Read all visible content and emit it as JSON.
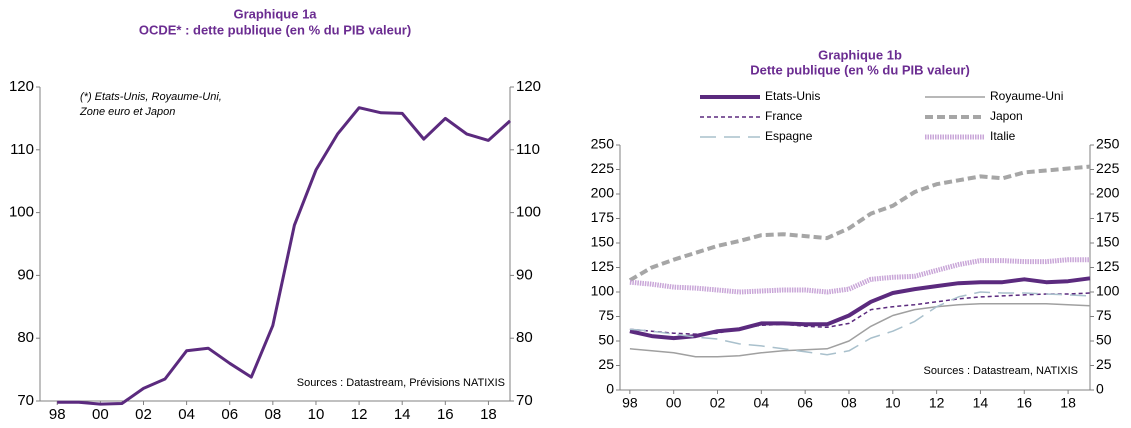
{
  "chart_data": [
    {
      "type": "line",
      "title": "Graphique 1a",
      "subtitle": "OCDE*  : dette publique (en % du PIB valeur)",
      "annotations": [
        "(*) Etats-Unis, Royaume-Uni,",
        "Zone euro  et Japon",
        "Sources  : Datastream,  Prévisions NATIXIS"
      ],
      "x": [
        1998,
        1999,
        2000,
        2001,
        2002,
        2003,
        2004,
        2005,
        2006,
        2007,
        2008,
        2009,
        2010,
        2011,
        2012,
        2013,
        2014,
        2015,
        2016,
        2017,
        2018,
        2019
      ],
      "values": [
        69.8,
        69.8,
        69.5,
        69.6,
        72,
        73.5,
        78,
        78.4,
        76,
        73.8,
        82,
        98,
        106.8,
        112.5,
        116.7,
        115.9,
        115.8,
        111.7,
        115,
        112.5,
        111.5,
        114.6
      ],
      "color": "#5b2a7e",
      "xlim": [
        1997.2,
        2019
      ],
      "xticks": [
        {
          "value": 1998,
          "label": "98"
        },
        {
          "value": 2000,
          "label": "00"
        },
        {
          "value": 2002,
          "label": "02"
        },
        {
          "value": 2004,
          "label": "04"
        },
        {
          "value": 2006,
          "label": "06"
        },
        {
          "value": 2008,
          "label": "08"
        },
        {
          "value": 2010,
          "label": "10"
        },
        {
          "value": 2012,
          "label": "12"
        },
        {
          "value": 2014,
          "label": "14"
        },
        {
          "value": 2016,
          "label": "16"
        },
        {
          "value": 2018,
          "label": "18"
        }
      ],
      "ylim": [
        70,
        120
      ],
      "yticks": [
        70,
        80,
        90,
        100,
        110,
        120
      ],
      "y2lim": [
        70,
        120
      ],
      "y2ticks": [
        70,
        80,
        90,
        100,
        110,
        120
      ]
    },
    {
      "type": "line",
      "title": "Graphique 1b",
      "subtitle": "Dette publique (en % du PIB valeur)",
      "annotations": [
        "Sources : Datastream, NATIXIS"
      ],
      "x": [
        1998,
        1999,
        2000,
        2001,
        2002,
        2003,
        2004,
        2005,
        2006,
        2007,
        2008,
        2009,
        2010,
        2011,
        2012,
        2013,
        2014,
        2015,
        2016,
        2017,
        2018,
        2019
      ],
      "series": [
        {
          "name": "Etats-Unis",
          "color": "#5b2a7e",
          "values": [
            60,
            55,
            53,
            55,
            60,
            62,
            68,
            68,
            67,
            67,
            76,
            90,
            99,
            103,
            106,
            109,
            110,
            110,
            113,
            110,
            111,
            114
          ]
        },
        {
          "name": "Royaume-Uni",
          "color": "#a0a0a0",
          "values": [
            42,
            40,
            38,
            34,
            34,
            35,
            38,
            40,
            41,
            42,
            50,
            65,
            76,
            82,
            85,
            87,
            88,
            88,
            88,
            88,
            87,
            86
          ]
        },
        {
          "name": "France",
          "color": "#5b2a7e",
          "values": [
            62,
            60,
            58,
            57,
            58,
            63,
            66,
            67,
            65,
            64,
            68,
            82,
            85,
            87,
            90,
            93,
            95,
            96,
            97,
            98,
            98,
            99
          ]
        },
        {
          "name": "Japon",
          "color": "#a6a6a6",
          "values": [
            112,
            125,
            133,
            140,
            147,
            152,
            158,
            159,
            157,
            155,
            165,
            180,
            188,
            202,
            210,
            214,
            218,
            216,
            222,
            224,
            226,
            228
          ]
        },
        {
          "name": "Espagne",
          "color": "#a9c0cc",
          "values": [
            62,
            60,
            57,
            54,
            52,
            47,
            45,
            42,
            39,
            36,
            40,
            53,
            60,
            70,
            85,
            95,
            100,
            99,
            99,
            98,
            97,
            96
          ]
        },
        {
          "name": "Italie",
          "color": "#c9a6d8",
          "values": [
            110,
            108,
            105,
            104,
            102,
            100,
            101,
            102,
            102,
            100,
            103,
            113,
            115,
            116,
            122,
            128,
            132,
            132,
            131,
            131,
            133,
            133
          ]
        }
      ],
      "xlim": [
        1997.55,
        2019
      ],
      "xticks": [
        {
          "value": 1998,
          "label": "98"
        },
        {
          "value": 2000,
          "label": "00"
        },
        {
          "value": 2002,
          "label": "02"
        },
        {
          "value": 2004,
          "label": "04"
        },
        {
          "value": 2006,
          "label": "06"
        },
        {
          "value": 2008,
          "label": "08"
        },
        {
          "value": 2010,
          "label": "10"
        },
        {
          "value": 2012,
          "label": "12"
        },
        {
          "value": 2014,
          "label": "14"
        },
        {
          "value": 2016,
          "label": "16"
        },
        {
          "value": 2018,
          "label": "18"
        }
      ],
      "ylim": [
        0,
        250
      ],
      "yticks": [
        0,
        25,
        50,
        75,
        100,
        125,
        150,
        175,
        200,
        225,
        250
      ],
      "y2lim": [
        0,
        250
      ],
      "y2ticks": [
        0,
        25,
        50,
        75,
        100,
        125,
        150,
        175,
        200,
        225,
        250
      ]
    }
  ]
}
